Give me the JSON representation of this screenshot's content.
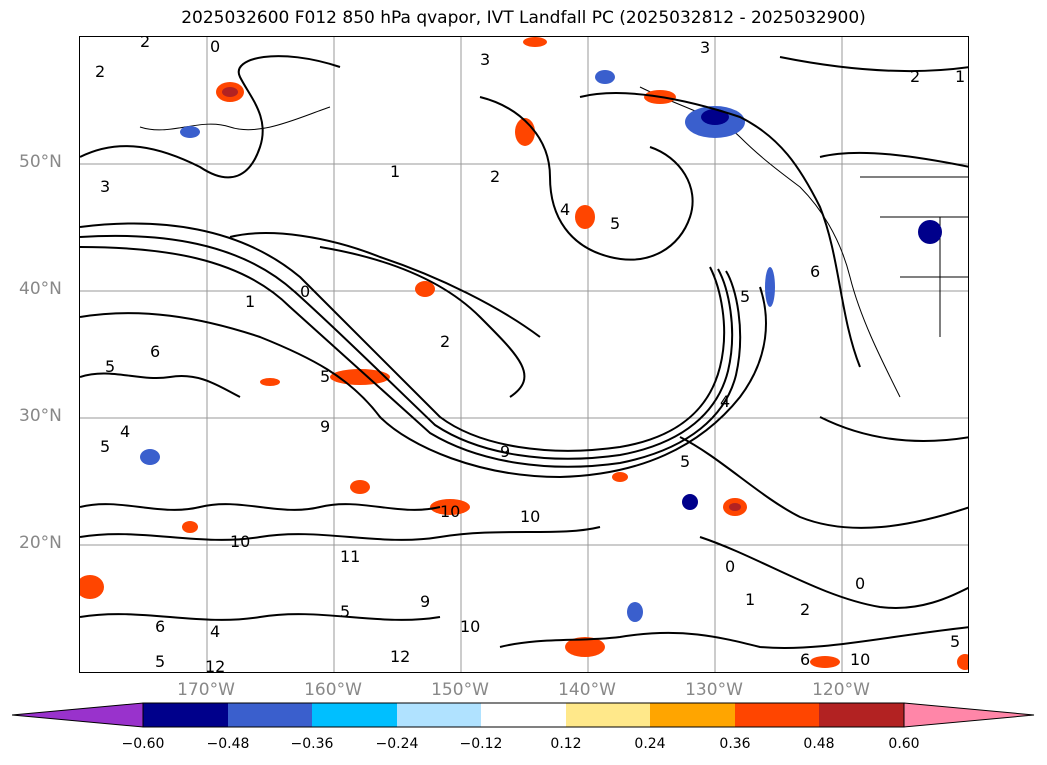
{
  "title": "2025032600 F012 850 hPa qvapor, IVT Landfall PC (2025032812 - 2025032900)",
  "latitude_labels": [
    "50°N",
    "40°N",
    "30°N",
    "20°N"
  ],
  "longitude_labels": [
    "170°W",
    "160°W",
    "150°W",
    "140°W",
    "130°W",
    "120°W"
  ],
  "colorbar": {
    "colors": [
      "#9932cc",
      "#00008b",
      "#3a5fcd",
      "#00bfff",
      "#b0e2ff",
      "#ffffff",
      "#ffe88a",
      "#ffa500",
      "#ff4500",
      "#b22222",
      "#ff86a8"
    ],
    "ticks": [
      "−0.60",
      "−0.48",
      "−0.36",
      "−0.24",
      "−0.12",
      "0.12",
      "0.24",
      "0.36",
      "0.48",
      "0.60"
    ]
  },
  "contour_labels": [
    "0",
    "1",
    "2",
    "3",
    "4",
    "5",
    "6",
    "9",
    "10",
    "11",
    "12"
  ]
}
